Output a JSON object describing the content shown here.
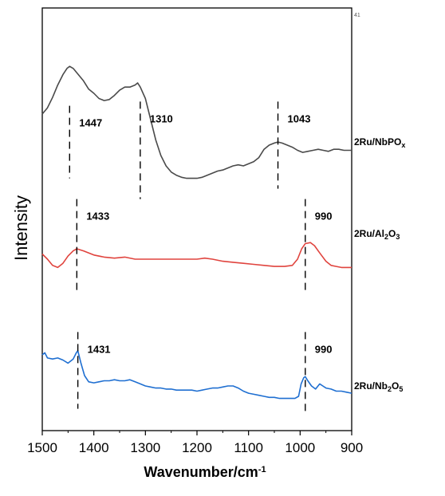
{
  "chart_data": {
    "type": "line",
    "title": "",
    "xlabel": "Wavenumber/cm",
    "xlabel_sup": "-1",
    "ylabel": "Intensity",
    "xlim": [
      1500,
      900
    ],
    "x_reversed": true,
    "y_ticks_shown": false,
    "x_ticks": [
      "1500",
      "1400",
      "1300",
      "1200",
      "1100",
      "1000",
      "900"
    ],
    "corner_mark": "41",
    "series": [
      {
        "label_parts": [
          [
            "2Ru/NbPO",
            ""
          ],
          [
            "x",
            "sub"
          ]
        ],
        "color": "#4a4a4a",
        "offset": 2.0,
        "points": [
          [
            1500,
            0.4
          ],
          [
            1490,
            0.46
          ],
          [
            1480,
            0.56
          ],
          [
            1470,
            0.68
          ],
          [
            1460,
            0.78
          ],
          [
            1452,
            0.84
          ],
          [
            1447,
            0.86
          ],
          [
            1440,
            0.84
          ],
          [
            1430,
            0.78
          ],
          [
            1420,
            0.72
          ],
          [
            1410,
            0.64
          ],
          [
            1400,
            0.6
          ],
          [
            1390,
            0.55
          ],
          [
            1380,
            0.53
          ],
          [
            1370,
            0.54
          ],
          [
            1360,
            0.58
          ],
          [
            1350,
            0.63
          ],
          [
            1340,
            0.66
          ],
          [
            1330,
            0.66
          ],
          [
            1320,
            0.68
          ],
          [
            1315,
            0.7
          ],
          [
            1310,
            0.66
          ],
          [
            1300,
            0.55
          ],
          [
            1290,
            0.35
          ],
          [
            1280,
            0.15
          ],
          [
            1270,
            0.0
          ],
          [
            1260,
            -0.1
          ],
          [
            1250,
            -0.16
          ],
          [
            1240,
            -0.19
          ],
          [
            1230,
            -0.21
          ],
          [
            1220,
            -0.22
          ],
          [
            1210,
            -0.22
          ],
          [
            1200,
            -0.22
          ],
          [
            1190,
            -0.21
          ],
          [
            1180,
            -0.19
          ],
          [
            1170,
            -0.17
          ],
          [
            1160,
            -0.15
          ],
          [
            1150,
            -0.14
          ],
          [
            1140,
            -0.12
          ],
          [
            1130,
            -0.1
          ],
          [
            1120,
            -0.09
          ],
          [
            1110,
            -0.1
          ],
          [
            1100,
            -0.08
          ],
          [
            1090,
            -0.06
          ],
          [
            1080,
            -0.02
          ],
          [
            1070,
            0.06
          ],
          [
            1060,
            0.1
          ],
          [
            1050,
            0.12
          ],
          [
            1043,
            0.13
          ],
          [
            1035,
            0.12
          ],
          [
            1025,
            0.1
          ],
          [
            1015,
            0.08
          ],
          [
            1005,
            0.05
          ],
          [
            995,
            0.03
          ],
          [
            985,
            0.04
          ],
          [
            975,
            0.05
          ],
          [
            965,
            0.06
          ],
          [
            955,
            0.05
          ],
          [
            945,
            0.04
          ],
          [
            935,
            0.06
          ],
          [
            925,
            0.06
          ],
          [
            915,
            0.05
          ],
          [
            900,
            0.05
          ]
        ]
      },
      {
        "label_parts": [
          [
            "2Ru/Al",
            ""
          ],
          [
            "2",
            "sub"
          ],
          [
            "O",
            ""
          ],
          [
            "3",
            "sub"
          ]
        ],
        "color": "#e0443e",
        "offset": 1.0,
        "points": [
          [
            1500,
            0.05
          ],
          [
            1490,
            0.0
          ],
          [
            1480,
            -0.06
          ],
          [
            1470,
            -0.08
          ],
          [
            1460,
            -0.04
          ],
          [
            1450,
            0.03
          ],
          [
            1440,
            0.08
          ],
          [
            1433,
            0.1
          ],
          [
            1420,
            0.08
          ],
          [
            1400,
            0.04
          ],
          [
            1380,
            0.02
          ],
          [
            1360,
            0.01
          ],
          [
            1340,
            0.02
          ],
          [
            1320,
            0.0
          ],
          [
            1300,
            0.0
          ],
          [
            1280,
            0.0
          ],
          [
            1260,
            0.0
          ],
          [
            1240,
            0.0
          ],
          [
            1220,
            0.0
          ],
          [
            1200,
            0.0
          ],
          [
            1185,
            0.01
          ],
          [
            1170,
            0.0
          ],
          [
            1150,
            -0.02
          ],
          [
            1130,
            -0.03
          ],
          [
            1110,
            -0.04
          ],
          [
            1090,
            -0.05
          ],
          [
            1070,
            -0.06
          ],
          [
            1050,
            -0.07
          ],
          [
            1030,
            -0.07
          ],
          [
            1015,
            -0.06
          ],
          [
            1005,
            0.0
          ],
          [
            997,
            0.1
          ],
          [
            990,
            0.15
          ],
          [
            980,
            0.16
          ],
          [
            972,
            0.13
          ],
          [
            962,
            0.06
          ],
          [
            950,
            -0.02
          ],
          [
            940,
            -0.06
          ],
          [
            930,
            -0.07
          ],
          [
            920,
            -0.08
          ],
          [
            910,
            -0.08
          ],
          [
            900,
            -0.08
          ]
        ]
      },
      {
        "label_parts": [
          [
            "2Ru/Nb",
            ""
          ],
          [
            "2",
            "sub"
          ],
          [
            "O",
            ""
          ],
          [
            "5",
            "sub"
          ]
        ],
        "color": "#1f6fd1",
        "offset": 0.0,
        "points": [
          [
            1500,
            0.3
          ],
          [
            1495,
            0.32
          ],
          [
            1490,
            0.27
          ],
          [
            1480,
            0.26
          ],
          [
            1470,
            0.27
          ],
          [
            1460,
            0.25
          ],
          [
            1450,
            0.22
          ],
          [
            1440,
            0.26
          ],
          [
            1434,
            0.32
          ],
          [
            1431,
            0.34
          ],
          [
            1425,
            0.22
          ],
          [
            1418,
            0.1
          ],
          [
            1410,
            0.04
          ],
          [
            1400,
            0.03
          ],
          [
            1390,
            0.04
          ],
          [
            1380,
            0.05
          ],
          [
            1370,
            0.05
          ],
          [
            1360,
            0.06
          ],
          [
            1350,
            0.05
          ],
          [
            1340,
            0.05
          ],
          [
            1330,
            0.06
          ],
          [
            1320,
            0.04
          ],
          [
            1310,
            0.02
          ],
          [
            1300,
            0.0
          ],
          [
            1290,
            -0.01
          ],
          [
            1280,
            -0.02
          ],
          [
            1270,
            -0.02
          ],
          [
            1260,
            -0.03
          ],
          [
            1250,
            -0.03
          ],
          [
            1240,
            -0.04
          ],
          [
            1230,
            -0.04
          ],
          [
            1220,
            -0.04
          ],
          [
            1210,
            -0.04
          ],
          [
            1200,
            -0.05
          ],
          [
            1190,
            -0.04
          ],
          [
            1180,
            -0.03
          ],
          [
            1170,
            -0.02
          ],
          [
            1160,
            -0.02
          ],
          [
            1150,
            -0.01
          ],
          [
            1140,
            0.0
          ],
          [
            1130,
            0.0
          ],
          [
            1120,
            -0.02
          ],
          [
            1110,
            -0.05
          ],
          [
            1100,
            -0.07
          ],
          [
            1090,
            -0.08
          ],
          [
            1080,
            -0.09
          ],
          [
            1070,
            -0.1
          ],
          [
            1060,
            -0.11
          ],
          [
            1050,
            -0.11
          ],
          [
            1040,
            -0.12
          ],
          [
            1030,
            -0.12
          ],
          [
            1020,
            -0.12
          ],
          [
            1010,
            -0.12
          ],
          [
            1003,
            -0.1
          ],
          [
            998,
            0.02
          ],
          [
            993,
            0.08
          ],
          [
            990,
            0.09
          ],
          [
            985,
            0.05
          ],
          [
            978,
            0.0
          ],
          [
            970,
            -0.03
          ],
          [
            962,
            0.02
          ],
          [
            956,
            0.0
          ],
          [
            950,
            -0.02
          ],
          [
            940,
            -0.03
          ],
          [
            930,
            -0.05
          ],
          [
            920,
            -0.05
          ],
          [
            910,
            -0.06
          ],
          [
            900,
            -0.07
          ]
        ]
      }
    ],
    "peaks": [
      {
        "series": 0,
        "x": 1447,
        "label": "1447",
        "dash_from": -0.22,
        "dash_to": 0.18
      },
      {
        "series": 0,
        "x": 1310,
        "label": "1310",
        "dash_from": -0.42,
        "dash_to": 0.22
      },
      {
        "series": 0,
        "x": 1043,
        "label": "1043",
        "dash_from": -0.32,
        "dash_to": 0.22
      },
      {
        "series": 1,
        "x": 1433,
        "label": "1433",
        "dash_from": -0.3,
        "dash_to": 0.28
      },
      {
        "series": 1,
        "x": 990,
        "label": "990",
        "dash_from": -0.34,
        "dash_to": 0.28
      },
      {
        "series": 2,
        "x": 1431,
        "label": "1431",
        "dash_from": -0.22,
        "dash_to": 0.22
      },
      {
        "series": 2,
        "x": 990,
        "label": "990",
        "dash_from": -0.28,
        "dash_to": 0.22
      }
    ]
  }
}
